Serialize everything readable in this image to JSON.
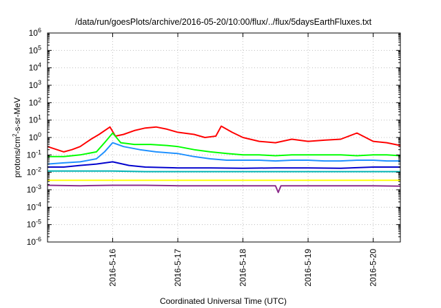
{
  "chart_data": {
    "type": "line",
    "title": "/data/run/goesPlots/archive/2016-05-20/10:00/flux/../flux/5daysEarthFluxes.txt",
    "xlabel": "Coordinated Universal Time (UTC)",
    "ylabel_base": "protons/cm",
    "ylabel_sup": "2",
    "ylabel_rest": "-s-sr-MeV",
    "y_scale": "log",
    "ylim": [
      1e-06,
      1000000.0
    ],
    "y_ticks": [
      {
        "exp": "-6",
        "value": 1e-06
      },
      {
        "exp": "-5",
        "value": 1e-05
      },
      {
        "exp": "-4",
        "value": 0.0001
      },
      {
        "exp": "-3",
        "value": 0.001
      },
      {
        "exp": "-2",
        "value": 0.01
      },
      {
        "exp": "-1",
        "value": 0.1
      },
      {
        "exp": "0",
        "value": 1
      },
      {
        "exp": "1",
        "value": 10
      },
      {
        "exp": "2",
        "value": 100
      },
      {
        "exp": "3",
        "value": 1000
      },
      {
        "exp": "4",
        "value": 10000
      },
      {
        "exp": "5",
        "value": 100000
      },
      {
        "exp": "6",
        "value": 1000000
      }
    ],
    "xlim": [
      "2016-05-15 00:00",
      "2016-05-20 10:00"
    ],
    "x_ticks": [
      "2016-5-16",
      "2016-5-17",
      "2016-5-18",
      "2016-5-19",
      "2016-5-20"
    ],
    "grid": true,
    "legend": "none",
    "series": [
      {
        "color": "#ff0000",
        "x": [
          "2016-05-15 00:00",
          "2016-05-15 06:00",
          "2016-05-15 09:00",
          "2016-05-15 12:00",
          "2016-05-15 16:00",
          "2016-05-15 19:00",
          "2016-05-15 23:00",
          "2016-05-16 01:00",
          "2016-05-16 04:00",
          "2016-05-16 08:00",
          "2016-05-16 12:00",
          "2016-05-16 16:00",
          "2016-05-16 20:00",
          "2016-05-17 00:00",
          "2016-05-17 06:00",
          "2016-05-17 10:00",
          "2016-05-17 14:00",
          "2016-05-17 16:00",
          "2016-05-17 20:00",
          "2016-05-18 00:00",
          "2016-05-18 06:00",
          "2016-05-18 12:00",
          "2016-05-18 18:00",
          "2016-05-19 00:00",
          "2016-05-19 06:00",
          "2016-05-19 12:00",
          "2016-05-19 18:00",
          "2016-05-20 00:00",
          "2016-05-20 05:00",
          "2016-05-20 10:00"
        ],
        "values": [
          0.3,
          0.15,
          0.2,
          0.3,
          0.8,
          1.5,
          4,
          1.2,
          1.5,
          2.5,
          3.5,
          4,
          3,
          2,
          1.5,
          1,
          1.2,
          4.5,
          2,
          1,
          0.6,
          0.5,
          0.8,
          0.6,
          0.7,
          0.8,
          1.8,
          0.6,
          0.5,
          0.35
        ]
      },
      {
        "color": "#00ff00",
        "x": [
          "2016-05-15 00:00",
          "2016-05-15 06:00",
          "2016-05-15 12:00",
          "2016-05-15 18:00",
          "2016-05-15 21:00",
          "2016-05-16 00:00",
          "2016-05-16 03:00",
          "2016-05-16 08:00",
          "2016-05-16 14:00",
          "2016-05-16 20:00",
          "2016-05-17 00:00",
          "2016-05-17 06:00",
          "2016-05-17 12:00",
          "2016-05-17 18:00",
          "2016-05-18 00:00",
          "2016-05-18 06:00",
          "2016-05-18 12:00",
          "2016-05-18 18:00",
          "2016-05-19 00:00",
          "2016-05-19 06:00",
          "2016-05-19 12:00",
          "2016-05-19 18:00",
          "2016-05-20 00:00",
          "2016-05-20 05:00",
          "2016-05-20 10:00"
        ],
        "values": [
          0.08,
          0.08,
          0.1,
          0.15,
          0.5,
          1.8,
          0.5,
          0.4,
          0.4,
          0.35,
          0.3,
          0.2,
          0.15,
          0.12,
          0.1,
          0.1,
          0.09,
          0.1,
          0.1,
          0.1,
          0.1,
          0.09,
          0.1,
          0.1,
          0.09
        ]
      },
      {
        "color": "#1e90ff",
        "x": [
          "2016-05-15 00:00",
          "2016-05-15 06:00",
          "2016-05-15 12:00",
          "2016-05-15 18:00",
          "2016-05-15 21:00",
          "2016-05-16 00:00",
          "2016-05-16 04:00",
          "2016-05-16 10:00",
          "2016-05-16 16:00",
          "2016-05-17 00:00",
          "2016-05-17 06:00",
          "2016-05-17 12:00",
          "2016-05-17 18:00",
          "2016-05-18 00:00",
          "2016-05-18 06:00",
          "2016-05-18 12:00",
          "2016-05-18 18:00",
          "2016-05-19 00:00",
          "2016-05-19 06:00",
          "2016-05-19 12:00",
          "2016-05-19 18:00",
          "2016-05-20 00:00",
          "2016-05-20 05:00",
          "2016-05-20 10:00"
        ],
        "values": [
          0.03,
          0.035,
          0.04,
          0.06,
          0.15,
          0.5,
          0.3,
          0.2,
          0.15,
          0.12,
          0.08,
          0.06,
          0.05,
          0.05,
          0.05,
          0.045,
          0.05,
          0.05,
          0.045,
          0.045,
          0.05,
          0.05,
          0.045,
          0.045
        ]
      },
      {
        "color": "#0000cd",
        "x": [
          "2016-05-15 00:00",
          "2016-05-15 06:00",
          "2016-05-15 12:00",
          "2016-05-15 18:00",
          "2016-05-16 00:00",
          "2016-05-16 06:00",
          "2016-05-16 12:00",
          "2016-05-17 00:00",
          "2016-05-17 12:00",
          "2016-05-18 00:00",
          "2016-05-18 12:00",
          "2016-05-19 00:00",
          "2016-05-19 12:00",
          "2016-05-20 00:00",
          "2016-05-20 10:00"
        ],
        "values": [
          0.02,
          0.02,
          0.025,
          0.03,
          0.04,
          0.025,
          0.02,
          0.018,
          0.018,
          0.017,
          0.018,
          0.018,
          0.017,
          0.02,
          0.02
        ]
      },
      {
        "color": "#00b4b4",
        "x": [
          "2016-05-15 00:00",
          "2016-05-15 12:00",
          "2016-05-16 00:00",
          "2016-05-16 12:00",
          "2016-05-17 00:00",
          "2016-05-17 12:00",
          "2016-05-18 00:00",
          "2016-05-18 12:00",
          "2016-05-19 00:00",
          "2016-05-19 12:00",
          "2016-05-20 00:00",
          "2016-05-20 10:00"
        ],
        "values": [
          0.012,
          0.012,
          0.012,
          0.011,
          0.011,
          0.011,
          0.011,
          0.011,
          0.011,
          0.011,
          0.011,
          0.011
        ]
      },
      {
        "color": "#ffff00",
        "x": [
          "2016-05-15 00:00",
          "2016-05-16 00:00",
          "2016-05-17 00:00",
          "2016-05-18 00:00",
          "2016-05-19 00:00",
          "2016-05-20 00:00",
          "2016-05-20 10:00"
        ],
        "values": [
          0.0035,
          0.0035,
          0.0035,
          0.0035,
          0.0035,
          0.0035,
          0.0035
        ]
      },
      {
        "color": "#8b2b8b",
        "x": [
          "2016-05-15 00:00",
          "2016-05-15 12:00",
          "2016-05-16 00:00",
          "2016-05-16 12:00",
          "2016-05-17 00:00",
          "2016-05-17 12:00",
          "2016-05-18 00:00",
          "2016-05-18 12:00",
          "2016-05-18 13:00",
          "2016-05-18 14:00",
          "2016-05-19 00:00",
          "2016-05-19 12:00",
          "2016-05-20 00:00",
          "2016-05-20 10:00"
        ],
        "values": [
          0.0018,
          0.0017,
          0.0018,
          0.0018,
          0.0017,
          0.0017,
          0.0017,
          0.0017,
          0.0007,
          0.0017,
          0.0017,
          0.0017,
          0.0017,
          0.0016
        ]
      }
    ]
  }
}
